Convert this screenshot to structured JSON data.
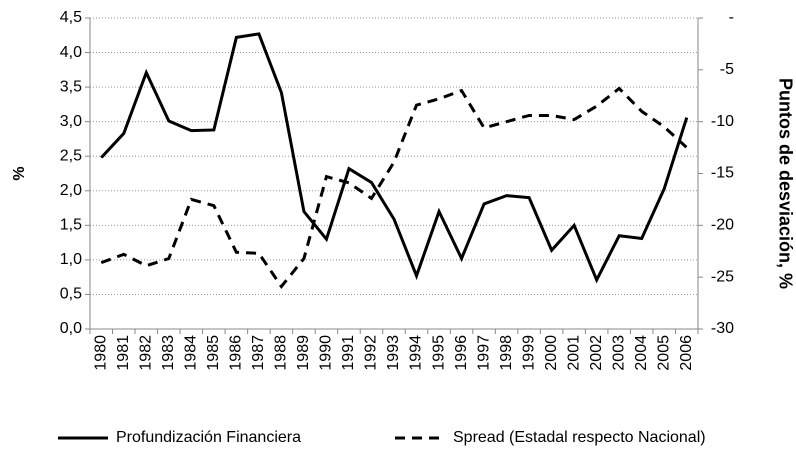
{
  "chart_data": {
    "type": "line",
    "ylabel": "%",
    "y2label": "Puntos de desviación, %",
    "categories": [
      "1980",
      "1981",
      "1982",
      "1983",
      "1984",
      "1985",
      "1986",
      "1987",
      "1988",
      "1989",
      "1990",
      "1991",
      "1992",
      "1993",
      "1994",
      "1995",
      "1996",
      "1997",
      "1998",
      "1999",
      "2000",
      "2001",
      "2002",
      "2003",
      "2004",
      "2005",
      "2006"
    ],
    "series": [
      {
        "name": "Profundización Financiera",
        "color": "#000000",
        "dash": "solid",
        "values": [
          2.48,
          2.83,
          3.71,
          3.01,
          2.87,
          2.88,
          4.22,
          4.27,
          3.42,
          1.7,
          1.3,
          2.32,
          2.12,
          1.59,
          0.77,
          1.7,
          1.02,
          1.81,
          1.93,
          1.9,
          1.14,
          1.5,
          0.71,
          1.35,
          1.31,
          2.03,
          3.06
        ]
      },
      {
        "name": "Spread (Estadal respecto Nacional)",
        "color": "#000000",
        "dash": "dashed",
        "axis": "y2",
        "values": [
          -23.6,
          -22.8,
          -23.9,
          -23.2,
          -17.5,
          -18.1,
          -22.6,
          -22.7,
          -25.9,
          -23.2,
          -15.3,
          -15.9,
          -17.4,
          -13.9,
          -8.4,
          -7.8,
          -7.0,
          -10.6,
          -10.0,
          -9.4,
          -9.4,
          -9.8,
          -8.5,
          -6.8,
          -9.0,
          -10.5,
          -12.5
        ]
      }
    ],
    "ylim": [
      0,
      4.5
    ],
    "yticks": [
      {
        "value": 0,
        "label": "0,0"
      },
      {
        "value": 0.5,
        "label": "0,5"
      },
      {
        "value": 1,
        "label": "1,0"
      },
      {
        "value": 1.5,
        "label": "1,5"
      },
      {
        "value": 2,
        "label": "2,0"
      },
      {
        "value": 2.5,
        "label": "2,5"
      },
      {
        "value": 3,
        "label": "3,0"
      },
      {
        "value": 3.5,
        "label": "3,5"
      },
      {
        "value": 4,
        "label": "4,0"
      },
      {
        "value": 4.5,
        "label": "4,5"
      }
    ],
    "y2lim": [
      -30,
      0
    ],
    "y2ticks": [
      -30,
      -25,
      -20,
      -15,
      -10,
      -5,
      {
        "value": 0,
        "label": "-"
      }
    ],
    "grid": true,
    "legend": "bottom"
  }
}
